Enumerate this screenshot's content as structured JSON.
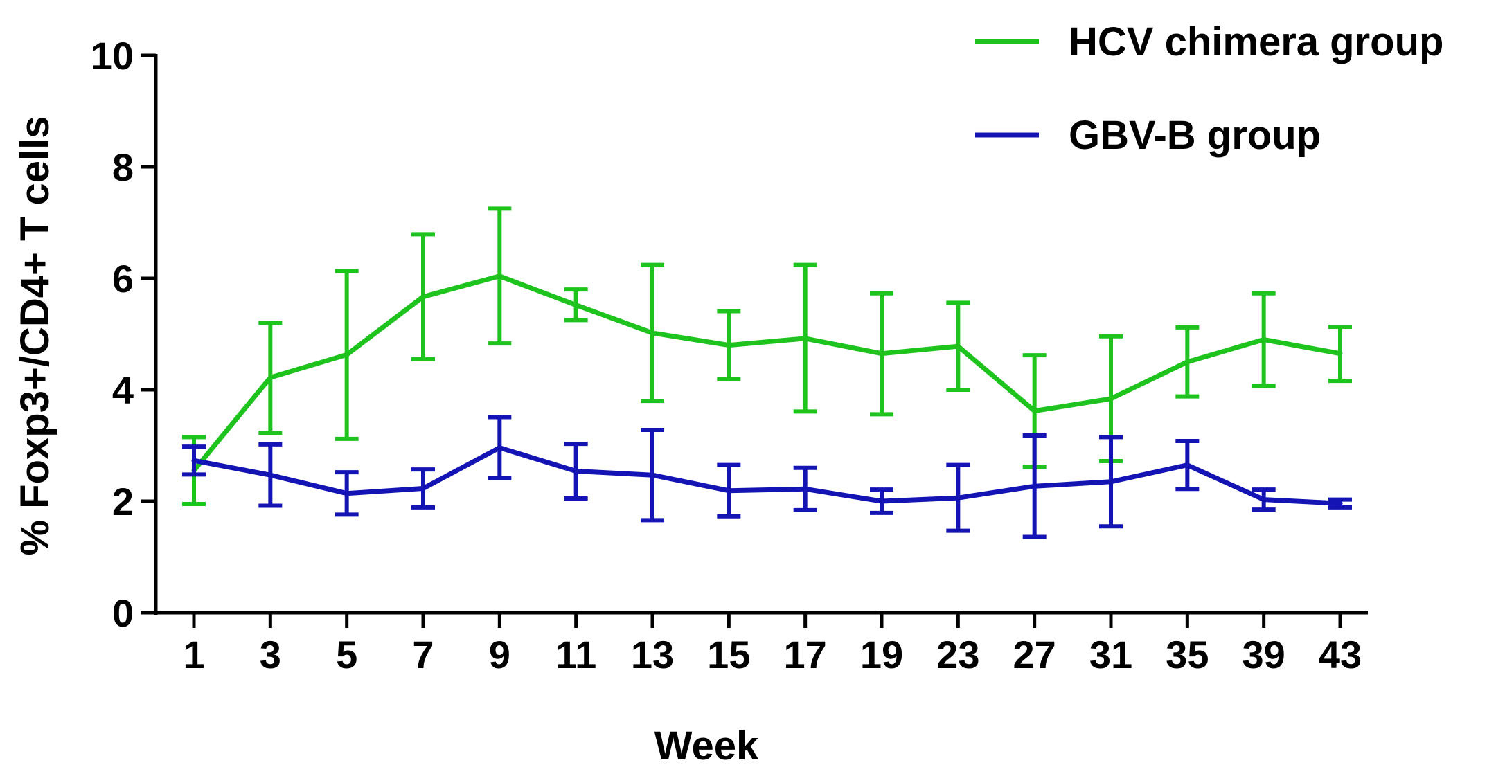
{
  "chart_data": {
    "type": "line",
    "title": "",
    "xlabel": "Week",
    "ylabel": "% Foxp3+/CD4+ T cells",
    "categories": [
      "1",
      "3",
      "5",
      "7",
      "9",
      "11",
      "13",
      "15",
      "17",
      "19",
      "23",
      "27",
      "31",
      "35",
      "39",
      "43"
    ],
    "ylim": [
      0,
      10
    ],
    "yticks": [
      0,
      2,
      4,
      6,
      8,
      10
    ],
    "grid": false,
    "legend_position": "top-right",
    "series": [
      {
        "name": "HCV chimera group",
        "color": "#1ec31e",
        "values": [
          2.55,
          4.22,
          4.63,
          5.67,
          6.04,
          5.52,
          5.02,
          4.8,
          4.92,
          4.65,
          4.78,
          3.62,
          3.84,
          4.5,
          4.9,
          4.65
        ],
        "upper": [
          3.15,
          5.2,
          6.13,
          6.79,
          7.25,
          5.8,
          6.24,
          5.41,
          6.24,
          5.73,
          5.56,
          4.62,
          4.96,
          5.12,
          5.73,
          5.13
        ],
        "lower": [
          1.95,
          3.23,
          3.12,
          4.55,
          4.83,
          5.25,
          3.8,
          4.19,
          3.61,
          3.56,
          4.0,
          2.62,
          2.72,
          3.88,
          4.07,
          4.16
        ]
      },
      {
        "name": "GBV-B group",
        "color": "#1414b4",
        "values": [
          2.73,
          2.47,
          2.14,
          2.23,
          2.96,
          2.54,
          2.47,
          2.19,
          2.22,
          2.0,
          2.06,
          2.27,
          2.35,
          2.65,
          2.03,
          1.96
        ],
        "upper": [
          2.98,
          3.02,
          2.52,
          2.57,
          3.51,
          3.03,
          3.28,
          2.65,
          2.6,
          2.21,
          2.65,
          3.18,
          3.15,
          3.08,
          2.21,
          2.03
        ],
        "lower": [
          2.48,
          1.92,
          1.76,
          1.89,
          2.41,
          2.05,
          1.66,
          1.73,
          1.84,
          1.79,
          1.47,
          1.36,
          1.55,
          2.22,
          1.85,
          1.89
        ]
      }
    ]
  }
}
